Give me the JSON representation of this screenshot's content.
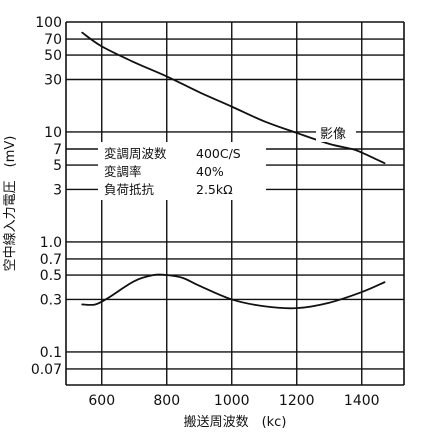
{
  "chart_data": {
    "type": "line",
    "title": "",
    "xlabel": "搬送周波数　(kc)",
    "ylabel": "空中線入力電圧　(mV)",
    "x_scale": "linear",
    "y_scale": "log",
    "xlim": [
      490,
      1530
    ],
    "ylim": [
      0.05,
      100
    ],
    "grid": true,
    "x_ticks": [
      {
        "value": 600,
        "label": "600"
      },
      {
        "value": 800,
        "label": "800"
      },
      {
        "value": 1000,
        "label": "1000"
      },
      {
        "value": 1200,
        "label": "1200"
      },
      {
        "value": 1400,
        "label": "1400"
      }
    ],
    "y_ticks": [
      {
        "value": 100,
        "label": "100"
      },
      {
        "value": 70,
        "label": "70"
      },
      {
        "value": 50,
        "label": "50"
      },
      {
        "value": 30,
        "label": "30"
      },
      {
        "value": 10,
        "label": "10"
      },
      {
        "value": 7,
        "label": "7"
      },
      {
        "value": 5,
        "label": "5"
      },
      {
        "value": 3,
        "label": "3"
      },
      {
        "value": 1,
        "label": "1.0"
      },
      {
        "value": 0.7,
        "label": "0.7"
      },
      {
        "value": 0.5,
        "label": "0.5"
      },
      {
        "value": 0.3,
        "label": "0.3"
      },
      {
        "value": 0.1,
        "label": "0.1"
      },
      {
        "value": 0.07,
        "label": "0.07"
      }
    ],
    "series": [
      {
        "name": "影像",
        "x": [
          540,
          600,
          700,
          800,
          900,
          1000,
          1100,
          1200,
          1300,
          1370,
          1400,
          1470
        ],
        "values": [
          80,
          60,
          43,
          32,
          23,
          17,
          12.5,
          9.8,
          7.8,
          7,
          6.5,
          5.2
        ]
      },
      {
        "name": "",
        "x": [
          540,
          580,
          620,
          700,
          760,
          800,
          850,
          900,
          1000,
          1100,
          1200,
          1300,
          1400,
          1470
        ],
        "values": [
          0.27,
          0.27,
          0.31,
          0.44,
          0.5,
          0.5,
          0.47,
          0.4,
          0.3,
          0.26,
          0.25,
          0.28,
          0.35,
          0.43
        ]
      }
    ],
    "legend_lines": [
      {
        "label": "変調周波数",
        "value": "400C/S"
      },
      {
        "label": "変調率",
        "value": "40%"
      },
      {
        "label": "負荷抵抗",
        "value": "2.5kΩ"
      }
    ]
  }
}
